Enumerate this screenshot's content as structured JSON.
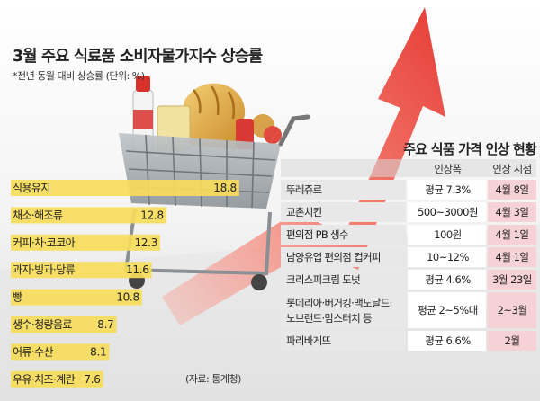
{
  "chart_data": {
    "type": "bar",
    "orientation": "horizontal",
    "title": "3월 주요 식료품 소비자물가지수 상승률",
    "subtitle": "*전년 동월 대비 상승률 (단위: %)",
    "categories": [
      "식용유지",
      "채소·해조류",
      "커피·차·코코아",
      "과자·빙과·당류",
      "빵",
      "생수·청량음료",
      "어류·수산",
      "우유·치즈·계란"
    ],
    "values": [
      18.8,
      12.8,
      12.3,
      11.6,
      10.8,
      8.7,
      8.1,
      7.6
    ],
    "value_labels": [
      "18.8",
      "12.8",
      "12.3",
      "11.6",
      "10.8",
      "8.7",
      "8.1",
      "7.6"
    ],
    "xlim": [
      0,
      20
    ],
    "source": "(자료: 통계청)",
    "bar_color": "#f7dc5a",
    "grid": false,
    "legend": "none"
  },
  "table": {
    "title": "주요 식품 가격 인상 현황",
    "headers": [
      "인상폭",
      "인상 시점"
    ],
    "rows": [
      {
        "name": [
          "뚜레쥬르"
        ],
        "increase": "평균 7.3%",
        "date": "4월 8일"
      },
      {
        "name": [
          "교촌치킨"
        ],
        "increase": "500~3000원",
        "date": "4월 3일"
      },
      {
        "name": [
          "편의점 PB 생수"
        ],
        "increase": "100원",
        "date": "4월 1일"
      },
      {
        "name": [
          "남양유업 편의점 컵커피"
        ],
        "increase": "10~12%",
        "date": "4월 1일"
      },
      {
        "name": [
          "크리스피크림 도넛"
        ],
        "increase": "평균 4.6%",
        "date": "3월 23일"
      },
      {
        "name": [
          "롯데리아·버거킹·맥도날드·",
          "노브랜드·맘스터치 등"
        ],
        "increase": "평균 2~5%대",
        "date": "2~3월"
      },
      {
        "name": [
          "파리바게뜨"
        ],
        "increase": "평균 6.6%",
        "date": "2월"
      }
    ]
  },
  "colors": {
    "arrow": "#e0403a",
    "table_row_bg": "#e8e8e8",
    "date_col_bg": "#f6d2d6",
    "header_band": "#d9d9d9"
  },
  "icons": [
    "rising-arrow-icon",
    "shopping-cart-icon",
    "bread-icon",
    "bottle-icon"
  ]
}
